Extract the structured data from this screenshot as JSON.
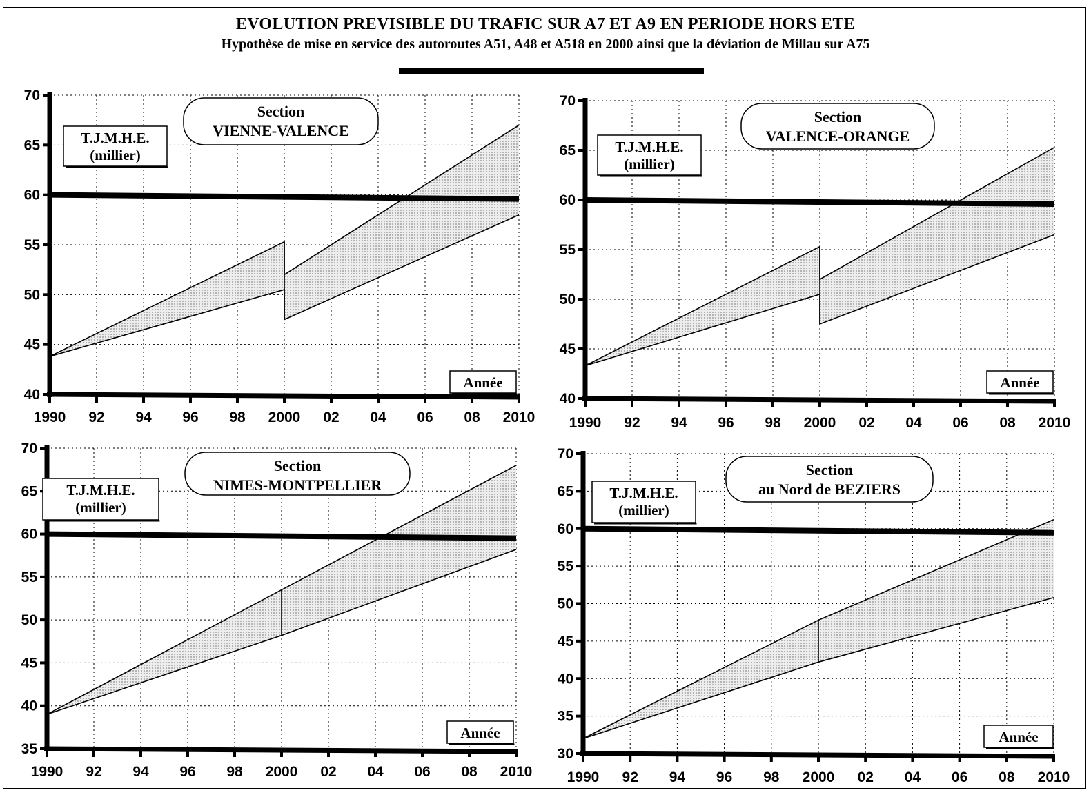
{
  "title": "EVOLUTION PREVISIBLE DU TRAFIC SUR A7 ET A9 EN PERIODE HORS ETE",
  "subtitle": "Hypothèse de mise en service des autoroutes A51, A48 et A518 en 2000 ainsi que la déviation de Millau sur A75",
  "colors": {
    "ink": "#000000",
    "fill": "#c8c8c8",
    "background": "#ffffff"
  },
  "chart_data": [
    {
      "type": "area",
      "section_label": "Section",
      "section_name": "VIENNE-VALENCE",
      "ylabel": "T.J.M.H.E.",
      "yunit": "(millier)",
      "xlabel": "Année",
      "xlim": [
        1990,
        2010
      ],
      "ylim": [
        40,
        70
      ],
      "xticks": [
        1990,
        1992,
        1994,
        1996,
        1998,
        2000,
        2002,
        2004,
        2006,
        2008,
        2010
      ],
      "xtick_labels": [
        "1990",
        "92",
        "94",
        "96",
        "98",
        "2000",
        "02",
        "04",
        "06",
        "08",
        "2010"
      ],
      "yticks": [
        40,
        45,
        50,
        55,
        60,
        65,
        70
      ],
      "ytick_labels": [
        "40",
        "45",
        "50",
        "55",
        "60",
        "65",
        "70"
      ],
      "grid": true,
      "threshold": 60,
      "series": [
        {
          "x": [
            1990,
            2000,
            2000,
            2010
          ],
          "y": [
            43.8,
            55.3,
            52.0,
            67.0
          ]
        },
        {
          "x": [
            1990,
            2000,
            2000,
            2010
          ],
          "y": [
            43.8,
            50.5,
            47.5,
            58.0
          ]
        }
      ]
    },
    {
      "type": "area",
      "section_label": "Section",
      "section_name": "VALENCE-ORANGE",
      "ylabel": "T.J.M.H.E.",
      "yunit": "(millier)",
      "xlabel": "Année",
      "xlim": [
        1990,
        2010
      ],
      "ylim": [
        40,
        70
      ],
      "xticks": [
        1990,
        1992,
        1994,
        1996,
        1998,
        2000,
        2002,
        2004,
        2006,
        2008,
        2010
      ],
      "xtick_labels": [
        "1990",
        "92",
        "94",
        "96",
        "98",
        "2000",
        "02",
        "04",
        "06",
        "08",
        "2010"
      ],
      "yticks": [
        40,
        45,
        50,
        55,
        60,
        65,
        70
      ],
      "ytick_labels": [
        "40",
        "45",
        "50",
        "55",
        "60",
        "65",
        "70"
      ],
      "grid": true,
      "threshold": 60,
      "series": [
        {
          "x": [
            1990,
            2000,
            2000,
            2010
          ],
          "y": [
            43.3,
            55.3,
            52.0,
            65.3
          ]
        },
        {
          "x": [
            1990,
            2000,
            2000,
            2010
          ],
          "y": [
            43.3,
            50.5,
            47.5,
            56.5
          ]
        }
      ]
    },
    {
      "type": "area",
      "section_label": "Section",
      "section_name": "NIMES-MONTPELLIER",
      "ylabel": "T.J.M.H.E.",
      "yunit": "(millier)",
      "xlabel": "Année",
      "xlim": [
        1990,
        2010
      ],
      "ylim": [
        35,
        70
      ],
      "xticks": [
        1990,
        1992,
        1994,
        1996,
        1998,
        2000,
        2002,
        2004,
        2006,
        2008,
        2010
      ],
      "xtick_labels": [
        "1990",
        "92",
        "94",
        "96",
        "98",
        "2000",
        "02",
        "04",
        "06",
        "08",
        "2010"
      ],
      "yticks": [
        35,
        40,
        45,
        50,
        55,
        60,
        65,
        70
      ],
      "ytick_labels": [
        "35",
        "40",
        "45",
        "50",
        "55",
        "60",
        "65",
        "70"
      ],
      "grid": true,
      "threshold": 60,
      "series": [
        {
          "x": [
            1990,
            2000,
            2000,
            2010
          ],
          "y": [
            39.0,
            53.5,
            53.5,
            68.0
          ]
        },
        {
          "x": [
            1990,
            2000,
            2000,
            2010
          ],
          "y": [
            39.0,
            48.2,
            48.2,
            58.2
          ]
        }
      ]
    },
    {
      "type": "area",
      "section_label": "Section",
      "section_name": "au Nord de BEZIERS",
      "ylabel": "T.J.M.H.E.",
      "yunit": "(millier)",
      "xlabel": "Année",
      "xlim": [
        1990,
        2010
      ],
      "ylim": [
        30,
        70
      ],
      "xticks": [
        1990,
        1992,
        1994,
        1996,
        1998,
        2000,
        2002,
        2004,
        2006,
        2008,
        2010
      ],
      "xtick_labels": [
        "1990",
        "92",
        "94",
        "96",
        "98",
        "2000",
        "02",
        "04",
        "06",
        "08",
        "2010"
      ],
      "yticks": [
        30,
        35,
        40,
        45,
        50,
        55,
        60,
        65,
        70
      ],
      "ytick_labels": [
        "30",
        "35",
        "40",
        "45",
        "50",
        "55",
        "60",
        "65",
        "70"
      ],
      "grid": true,
      "threshold": 60,
      "series": [
        {
          "x": [
            1990,
            2000,
            2000,
            2010
          ],
          "y": [
            32.0,
            47.8,
            47.8,
            61.2
          ]
        },
        {
          "x": [
            1990,
            2000,
            2000,
            2010
          ],
          "y": [
            32.0,
            42.2,
            42.2,
            50.8
          ]
        }
      ]
    }
  ]
}
